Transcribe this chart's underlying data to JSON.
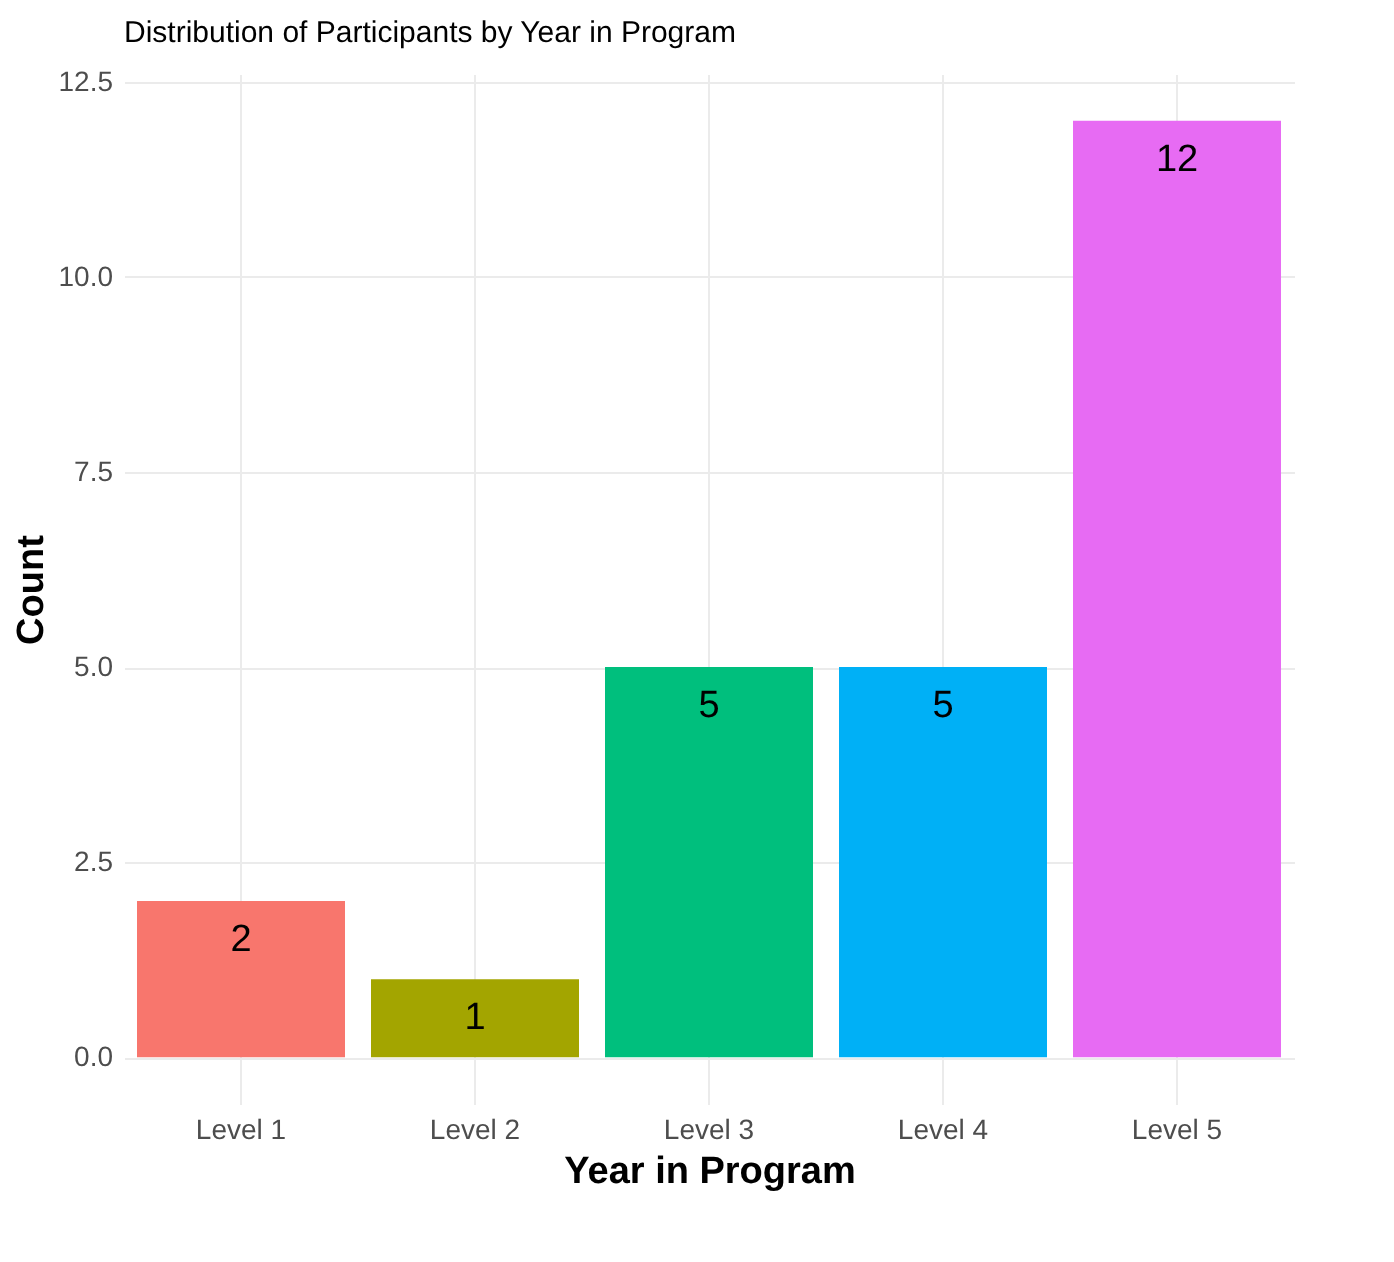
{
  "chart_data": {
    "type": "bar",
    "title": "Distribution of Participants by Year in Program",
    "xlabel": "Year in Program",
    "ylabel": "Count",
    "categories": [
      "Level 1",
      "Level 2",
      "Level 3",
      "Level 4",
      "Level 5"
    ],
    "values": [
      2,
      1,
      5,
      5,
      12
    ],
    "colors": [
      "#f8766d",
      "#a3a500",
      "#00bf7d",
      "#00b0f6",
      "#e76bf3"
    ],
    "ylim": [
      -0.6,
      12.6
    ],
    "yticks": [
      {
        "value": 0,
        "label": "0.0"
      },
      2.5,
      {
        "value": 5,
        "label": "5.0"
      },
      7.5,
      {
        "value": 10,
        "label": "10.0"
      },
      12.5
    ],
    "grid": true,
    "data_labels": true,
    "legend": false
  }
}
